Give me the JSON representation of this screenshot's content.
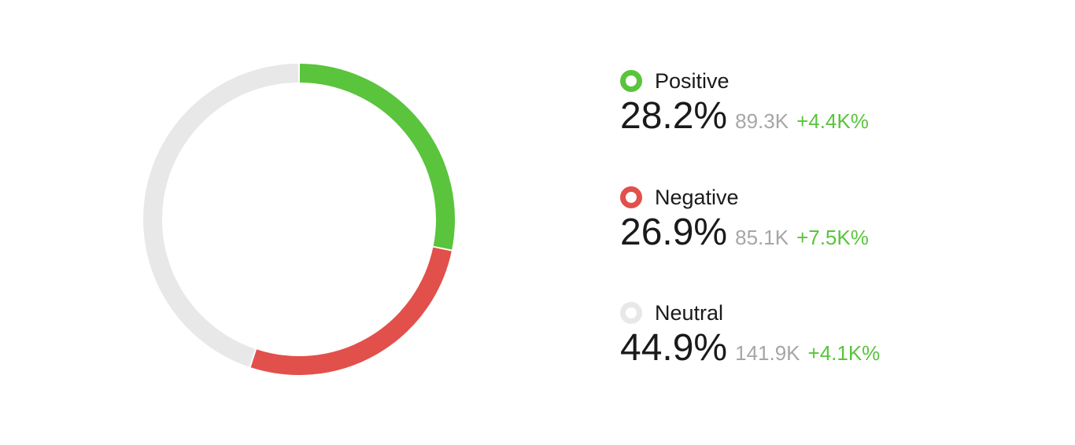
{
  "chart_data": {
    "type": "pie",
    "variant": "donut",
    "title": "",
    "legend_position": "right",
    "slices": [
      {
        "name": "Positive",
        "value": 28.2,
        "percent_label": "28.2%",
        "count": "89.3K",
        "change": "+4.4K%",
        "color": "#5ac43c"
      },
      {
        "name": "Negative",
        "value": 26.9,
        "percent_label": "26.9%",
        "count": "85.1K",
        "change": "+7.5K%",
        "color": "#e2504b"
      },
      {
        "name": "Neutral",
        "value": 44.9,
        "percent_label": "44.9%",
        "count": "141.9K",
        "change": "+4.1K%",
        "color": "#e8e8e8"
      }
    ]
  },
  "colors": {
    "change_text": "#5ac43c",
    "count_text": "#a6a6a6",
    "primary_text": "#1a1a1a"
  }
}
